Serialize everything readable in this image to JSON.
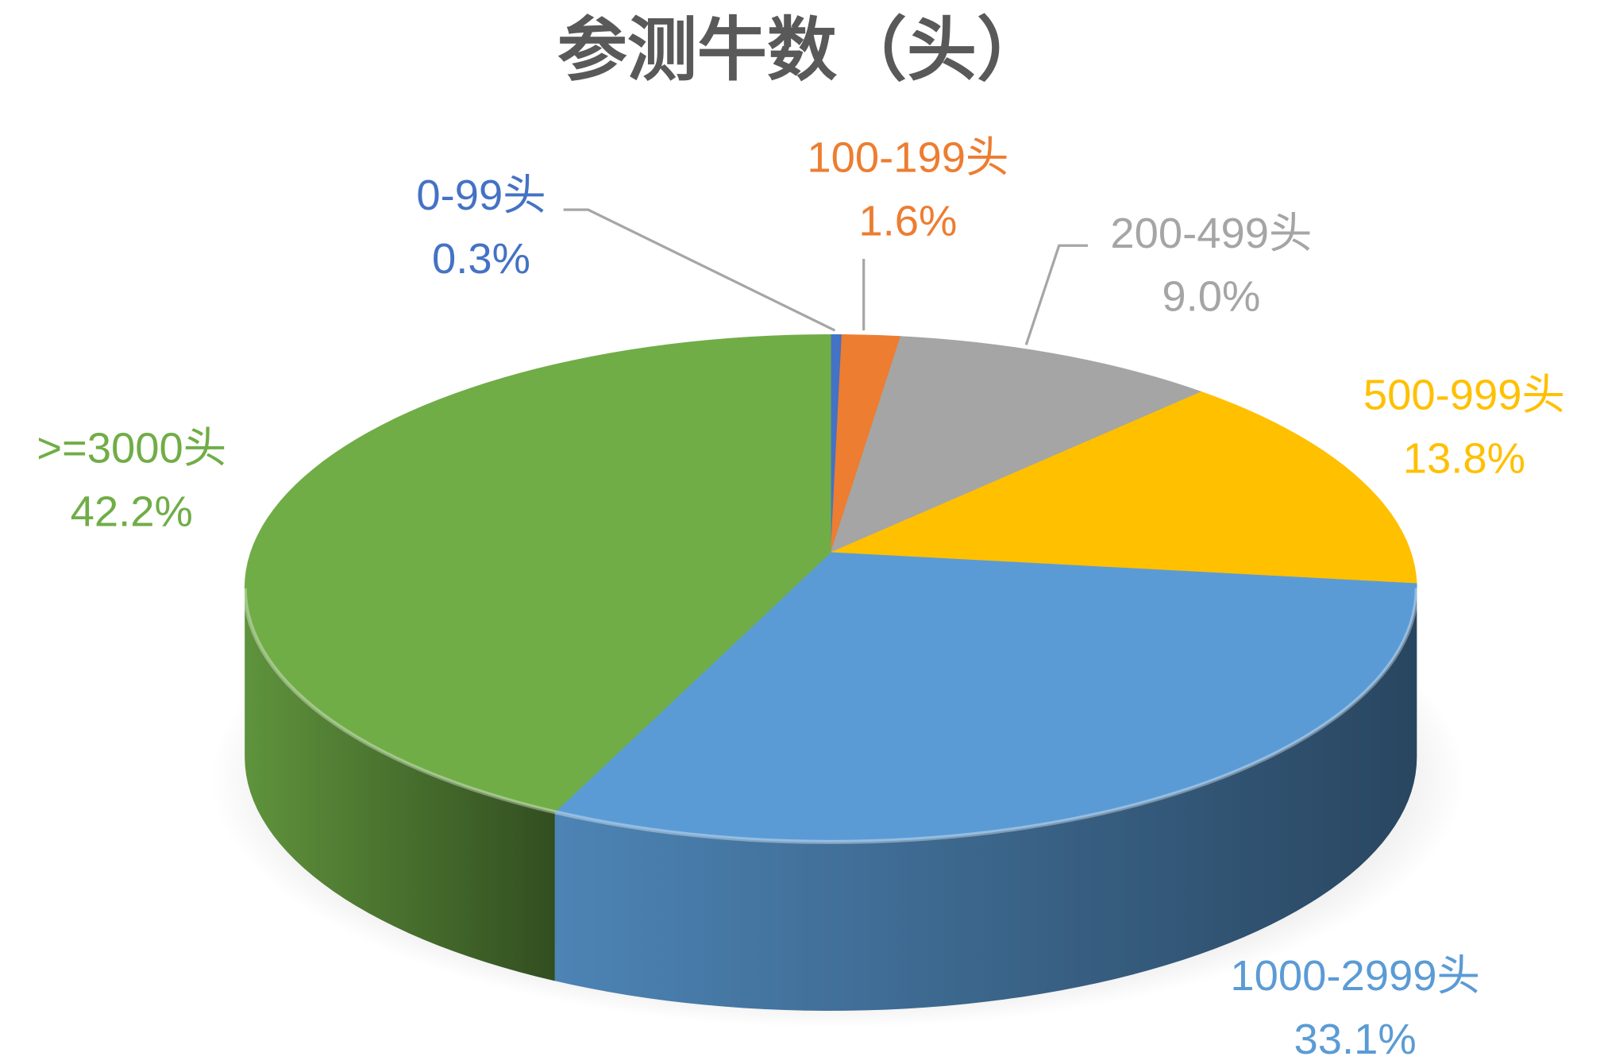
{
  "chart_data": {
    "type": "pie",
    "style": "3d",
    "title": "参测牛数（头）",
    "categories": [
      "0-99头",
      "100-199头",
      "200-499头",
      "500-999头",
      "1000-2999头",
      ">=3000头"
    ],
    "values": [
      0.3,
      1.6,
      9.0,
      13.8,
      33.1,
      42.2
    ],
    "value_labels": [
      "0.3%",
      "1.6%",
      "9.0%",
      "13.8%",
      "33.1%",
      "42.2%"
    ],
    "colors": [
      "#4472C4",
      "#ED7D31",
      "#A5A5A5",
      "#FFC000",
      "#5B9BD5",
      "#70AD47"
    ],
    "legend": "none",
    "data_labels": "outside with leader lines"
  }
}
